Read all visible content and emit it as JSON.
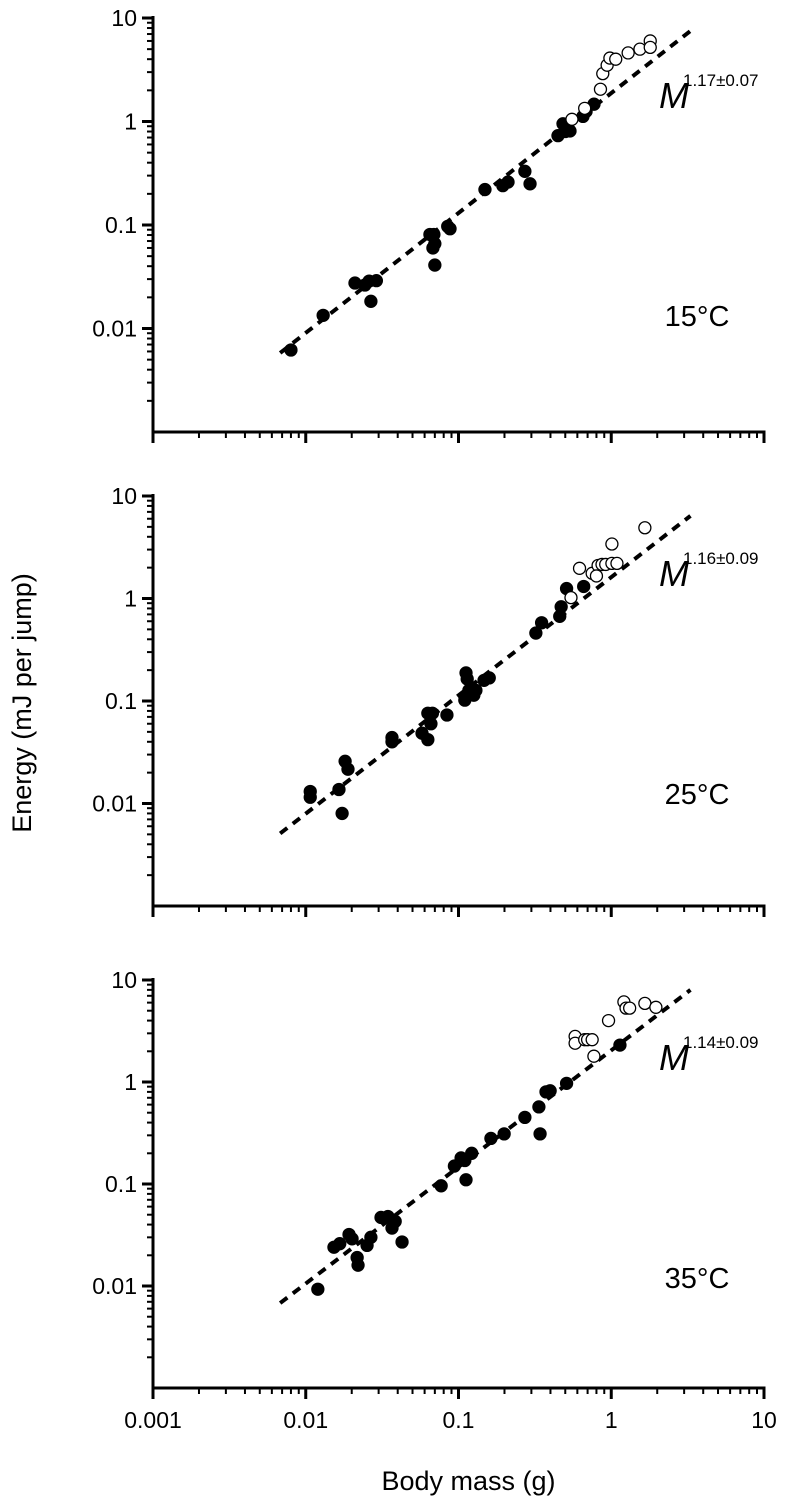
{
  "chart_data": [
    {
      "type": "scatter",
      "log_x": true,
      "log_y": true,
      "xlim": [
        0.001,
        10
      ],
      "ylim": [
        0.001,
        10
      ],
      "xticks": [
        0.001,
        0.01,
        0.1,
        1,
        10
      ],
      "yticks": [
        0.01,
        0.1,
        1,
        10
      ],
      "show_xtick_labels": false,
      "annotation": "15°C",
      "exponent_base": "M",
      "exponent": "1.17±0.07",
      "fit_line": {
        "x": [
          0.0068,
          3.3
        ],
        "y": [
          0.0058,
          7.5
        ]
      },
      "series": [
        {
          "marker": "filled",
          "color": "#000000",
          "x": [
            0.008,
            0.013,
            0.021,
            0.0244,
            0.0267,
            0.026,
            0.029,
            0.069,
            0.065,
            0.068,
            0.07,
            0.07,
            0.088,
            0.085,
            0.149,
            0.195,
            0.211,
            0.272,
            0.294,
            0.448,
            0.483,
            0.5,
            0.537,
            0.653,
            0.684,
            0.771
          ],
          "values": [
            0.0062,
            0.0134,
            0.0275,
            0.0263,
            0.0183,
            0.0287,
            0.029,
            0.081,
            0.081,
            0.06,
            0.041,
            0.066,
            0.092,
            0.097,
            0.22,
            0.24,
            0.26,
            0.33,
            0.25,
            0.73,
            0.95,
            0.8,
            0.81,
            1.12,
            1.25,
            1.47
          ]
        },
        {
          "marker": "open",
          "color": "#000000",
          "x": [
            0.553,
            0.67,
            0.85,
            0.88,
            0.94,
            0.98,
            1.07,
            1.29,
            1.54,
            1.8,
            1.8
          ],
          "values": [
            1.05,
            1.34,
            2.05,
            2.9,
            3.5,
            4.1,
            4.0,
            4.6,
            5.0,
            6.0,
            5.2
          ]
        }
      ]
    },
    {
      "type": "scatter",
      "log_x": true,
      "log_y": true,
      "xlim": [
        0.001,
        10
      ],
      "ylim": [
        0.001,
        10
      ],
      "xticks": [
        0.001,
        0.01,
        0.1,
        1,
        10
      ],
      "yticks": [
        0.01,
        0.1,
        1,
        10
      ],
      "show_xtick_labels": false,
      "ylabel": "Energy (mJ per jump)",
      "annotation": "25°C",
      "exponent_base": "M",
      "exponent": "1.16±0.09",
      "fit_line": {
        "x": [
          0.0068,
          3.3
        ],
        "y": [
          0.0051,
          6.4
        ]
      },
      "series": [
        {
          "marker": "filled",
          "color": "#000000",
          "x": [
            0.0107,
            0.0107,
            0.0165,
            0.0173,
            0.0181,
            0.0189,
            0.0367,
            0.0367,
            0.0577,
            0.063,
            0.063,
            0.066,
            0.0675,
            0.084,
            0.11,
            0.112,
            0.114,
            0.117,
            0.126,
            0.13,
            0.147,
            0.159,
            0.321,
            0.35,
            0.46,
            0.47,
            0.51,
            0.66
          ],
          "values": [
            0.0131,
            0.0115,
            0.0137,
            0.008,
            0.0258,
            0.0216,
            0.044,
            0.04,
            0.0485,
            0.076,
            0.042,
            0.06,
            0.076,
            0.073,
            0.102,
            0.188,
            0.164,
            0.127,
            0.114,
            0.127,
            0.159,
            0.168,
            0.46,
            0.58,
            0.67,
            0.83,
            1.25,
            1.31
          ]
        },
        {
          "marker": "open",
          "color": "#000000",
          "x": [
            0.545,
            0.62,
            0.75,
            0.82,
            0.8,
            0.87,
            0.92,
            1.01,
            1.01,
            1.09,
            1.66
          ],
          "values": [
            1.02,
            1.97,
            1.76,
            2.1,
            1.66,
            2.15,
            2.15,
            3.4,
            2.2,
            2.2,
            4.9
          ]
        }
      ]
    },
    {
      "type": "scatter",
      "log_x": true,
      "log_y": true,
      "xlim": [
        0.001,
        10
      ],
      "ylim": [
        0.001,
        10
      ],
      "xticks": [
        0.001,
        0.01,
        0.1,
        1,
        10
      ],
      "yticks": [
        0.01,
        0.1,
        1,
        10
      ],
      "show_xtick_labels": true,
      "xlabel": "Body mass (g)",
      "annotation": "35°C",
      "exponent_base": "M",
      "exponent": "1.14±0.09",
      "fit_line": {
        "x": [
          0.0068,
          3.3
        ],
        "y": [
          0.0068,
          8.0
        ]
      },
      "series": [
        {
          "marker": "filled",
          "color": "#000000",
          "x": [
            0.012,
            0.0153,
            0.0167,
            0.0192,
            0.0201,
            0.0217,
            0.022,
            0.0252,
            0.0267,
            0.0311,
            0.0345,
            0.0367,
            0.0385,
            0.0427,
            0.077,
            0.094,
            0.104,
            0.11,
            0.112,
            0.122,
            0.163,
            0.199,
            0.272,
            0.336,
            0.342,
            0.374,
            0.398,
            0.51,
            1.14
          ],
          "values": [
            0.0093,
            0.024,
            0.026,
            0.032,
            0.029,
            0.019,
            0.016,
            0.025,
            0.03,
            0.047,
            0.048,
            0.037,
            0.043,
            0.027,
            0.096,
            0.15,
            0.18,
            0.17,
            0.11,
            0.2,
            0.28,
            0.31,
            0.45,
            0.57,
            0.31,
            0.8,
            0.82,
            0.97,
            2.3
          ]
        },
        {
          "marker": "open",
          "color": "#000000",
          "x": [
            0.58,
            0.58,
            0.67,
            0.7,
            0.75,
            0.77,
            0.96,
            1.21,
            1.25,
            1.32,
            1.66,
            1.96
          ],
          "values": [
            2.8,
            2.4,
            2.6,
            2.6,
            2.6,
            1.79,
            4.0,
            6.1,
            5.3,
            5.3,
            5.9,
            5.4
          ]
        }
      ]
    }
  ]
}
